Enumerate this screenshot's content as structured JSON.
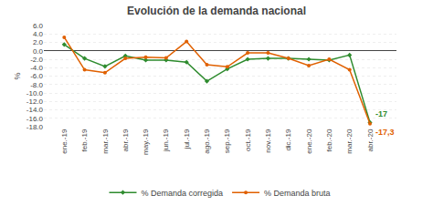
{
  "chart_data": {
    "type": "line",
    "title": "Evolución de la demanda nacional",
    "y_label": "%",
    "categories": [
      "ene.-19",
      "feb.-19",
      "mar.-19",
      "abr.-19",
      "may.-19",
      "jun.-19",
      "jul.-19",
      "ago.-19",
      "sep.-19",
      "oct.-19",
      "nov.-19",
      "dic.-19",
      "ene.-20",
      "feb.-20",
      "mar.-20",
      "abr.-20"
    ],
    "series": [
      {
        "name": "% Demanda corregida",
        "color": "#2e8b2e",
        "marker": "diamond",
        "values": [
          1.5,
          -1.8,
          -3.7,
          -1.2,
          -2.2,
          -2.2,
          -2.7,
          -7.2,
          -4.3,
          -2.0,
          -1.8,
          -1.8,
          -2.0,
          -2.2,
          -1.0,
          -17.0
        ]
      },
      {
        "name": "% Demanda bruta",
        "color": "#e06000",
        "marker": "circle",
        "values": [
          3.2,
          -4.5,
          -5.2,
          -1.8,
          -1.5,
          -1.7,
          2.2,
          -3.3,
          -3.8,
          -0.5,
          -0.5,
          -1.8,
          -3.5,
          -2.0,
          -4.5,
          -17.3
        ]
      }
    ],
    "annotations": [
      {
        "text": "-17",
        "x": "abr.-20",
        "y": -17.0,
        "color": "#2e8b2e"
      },
      {
        "text": "-17,3",
        "x": "abr.-20",
        "y": -17.3,
        "color": "#e06000"
      }
    ],
    "ylim": [
      -18.0,
      6.0
    ],
    "yticks": [
      {
        "value": 6.0,
        "label": "6.0"
      },
      {
        "value": 4.0,
        "label": "4.0"
      },
      {
        "value": 2.0,
        "label": "2.0"
      },
      {
        "value": 0.0,
        "label": "0.0"
      },
      {
        "value": -2.0,
        "label": "-2.0"
      },
      {
        "value": -4.0,
        "label": "-4.0"
      },
      {
        "value": -6.0,
        "label": "-6.0"
      },
      {
        "value": -8.0,
        "label": "-8.0"
      },
      {
        "value": -10.0,
        "label": "-10.0"
      },
      {
        "value": -12.0,
        "label": "-12.0"
      },
      {
        "value": -14.0,
        "label": "-14.0"
      },
      {
        "value": -16.0,
        "label": "-16.0"
      },
      {
        "value": -18.0,
        "label": "-18.0"
      }
    ],
    "grid": true,
    "legend": "bottom"
  }
}
